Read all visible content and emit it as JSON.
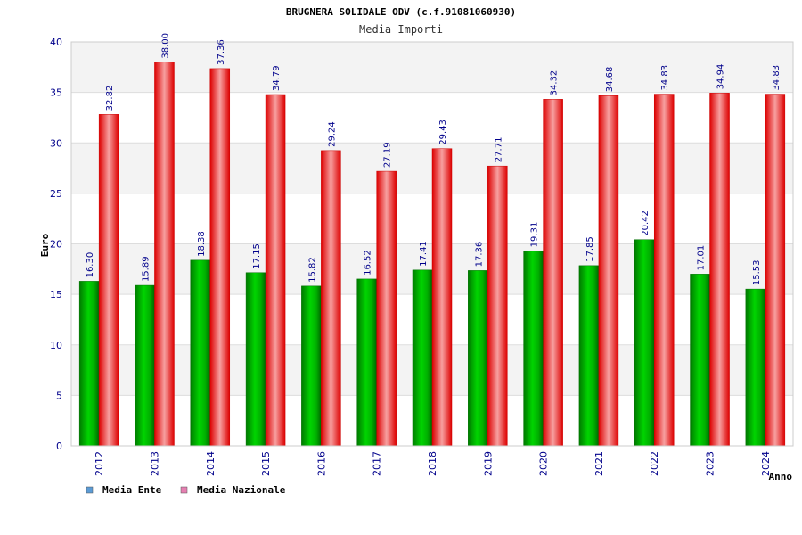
{
  "chart_data": {
    "type": "bar",
    "title": "BRUGNERA SOLIDALE ODV (c.f.91081060930)",
    "subtitle": "Media Importi",
    "xlabel": "Anno",
    "ylabel": "Euro",
    "ylim": [
      0,
      40
    ],
    "yticks": [
      "0",
      "5",
      "10",
      "15",
      "20",
      "25",
      "30",
      "35",
      "40"
    ],
    "categories": [
      "2012",
      "2013",
      "2014",
      "2015",
      "2016",
      "2017",
      "2018",
      "2019",
      "2020",
      "2021",
      "2022",
      "2023",
      "2024"
    ],
    "series": [
      {
        "name": "Media Ente",
        "color": "#00cc00",
        "values": [
          16.3,
          15.89,
          18.38,
          17.15,
          15.82,
          16.52,
          17.41,
          17.36,
          19.31,
          17.85,
          20.42,
          17.01,
          15.53
        ],
        "labels": [
          "16.30",
          "15.89",
          "18.38",
          "17.15",
          "15.82",
          "16.52",
          "17.41",
          "17.36",
          "19.31",
          "17.85",
          "20.42",
          "17.01",
          "15.53"
        ]
      },
      {
        "name": "Media Nazionale",
        "color": "#ee1111",
        "values": [
          32.82,
          38.0,
          37.36,
          34.79,
          29.24,
          27.19,
          29.43,
          27.71,
          34.32,
          34.68,
          34.83,
          34.94,
          34.83
        ],
        "labels": [
          "32.82",
          "38.00",
          "37.36",
          "34.79",
          "29.24",
          "27.19",
          "29.43",
          "27.71",
          "34.32",
          "34.68",
          "34.83",
          "34.94",
          "34.83"
        ]
      }
    ],
    "legend": [
      {
        "name": "Media Ente",
        "color": "#5b9bd5"
      },
      {
        "name": "Media Nazionale",
        "color": "#e57fb1"
      }
    ],
    "legend_position": "bottom-left",
    "grid": true
  }
}
